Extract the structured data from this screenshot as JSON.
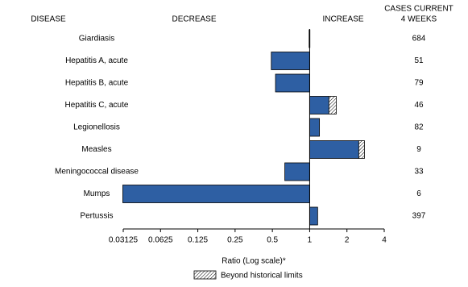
{
  "chart_data": {
    "type": "bar",
    "orientation": "horizontal",
    "log_scale": true,
    "disease_label": "DISEASE",
    "decrease_label": "DECREASE",
    "increase_label": "INCREASE",
    "cases_label": [
      "CASES CURRENT",
      "4 WEEKS"
    ],
    "categories": [
      "Giardiasis",
      "Hepatitis A, acute",
      "Hepatitis B, acute",
      "Hepatitis C, acute",
      "Legionellosis",
      "Measles",
      "Meningococcal disease",
      "Mumps",
      "Pertussis"
    ],
    "values": [
      0.99,
      0.49,
      0.53,
      1.64,
      1.2,
      2.77,
      0.63,
      0.031,
      1.16
    ],
    "historical_limits": [
      null,
      null,
      null,
      1.43,
      null,
      2.49,
      null,
      null,
      null
    ],
    "cases": [
      684,
      51,
      79,
      46,
      82,
      9,
      33,
      6,
      397
    ],
    "color": "#2e5fa3",
    "xlim": [
      0.03125,
      4
    ],
    "xticks": [
      0.03125,
      0.0625,
      0.125,
      0.25,
      0.5,
      1,
      2,
      4
    ],
    "xlabel": "Ratio (Log scale)*",
    "legend": "Beyond historical limits"
  }
}
